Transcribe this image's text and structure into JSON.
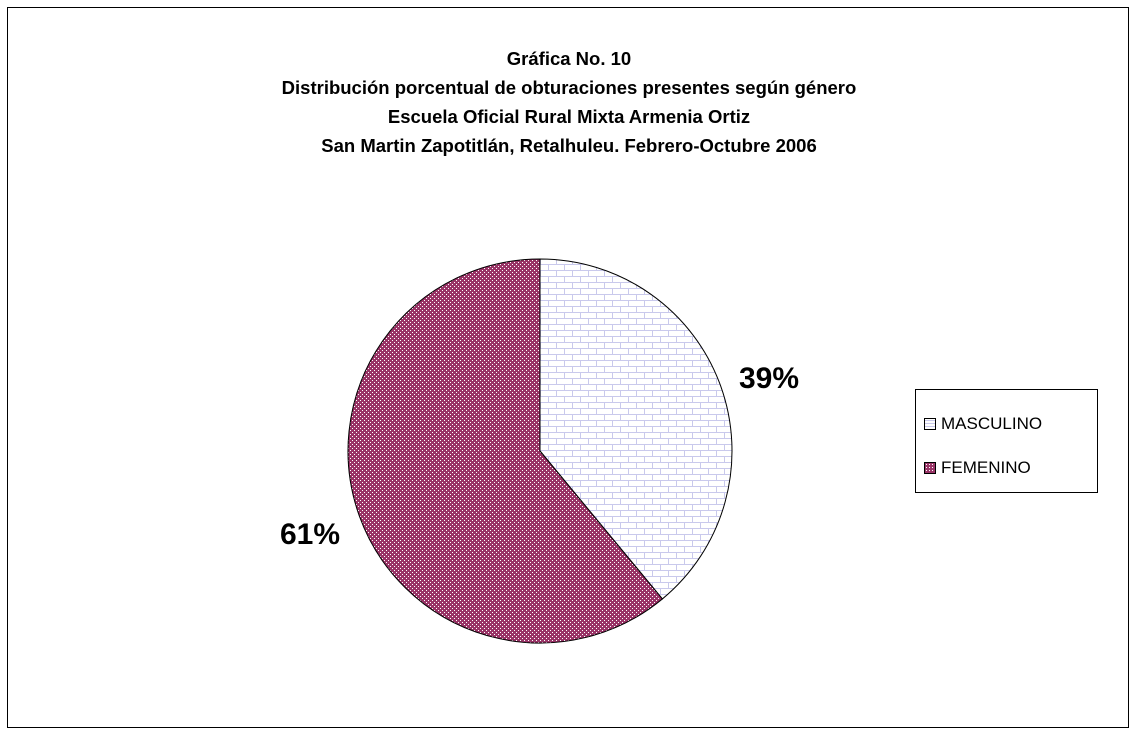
{
  "chart_data": {
    "type": "pie",
    "title_lines": [
      "Gráfica No. 10",
      "Distribución porcentual de obturaciones presentes según género",
      "Escuela Oficial Rural Mixta Armenia Ortiz",
      "San Martin Zapotitlán, Retalhuleu. Febrero-Octubre 2006"
    ],
    "slices": [
      {
        "label": "MASCULINO",
        "value": 39,
        "display": "39%",
        "color": "#ffffff",
        "pattern_color": "#c9c9ec"
      },
      {
        "label": "FEMENINO",
        "value": 61,
        "display": "61%",
        "color": "#993366",
        "pattern_color": "#ffffff"
      }
    ],
    "legend_position": "right"
  }
}
